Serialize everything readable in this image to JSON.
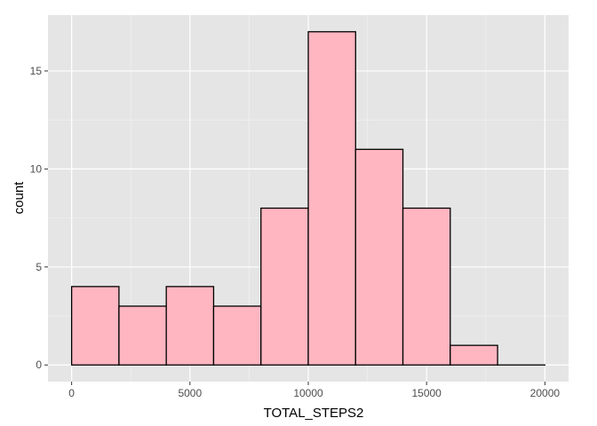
{
  "chart_data": {
    "type": "bar",
    "subtype": "histogram",
    "title": "",
    "xlabel": "TOTAL_STEPS2",
    "ylabel": "count",
    "bins": [
      {
        "start": 0,
        "end": 2000,
        "count": 4
      },
      {
        "start": 2000,
        "end": 4000,
        "count": 3
      },
      {
        "start": 4000,
        "end": 6000,
        "count": 4
      },
      {
        "start": 6000,
        "end": 8000,
        "count": 3
      },
      {
        "start": 8000,
        "end": 10000,
        "count": 8
      },
      {
        "start": 10000,
        "end": 12000,
        "count": 17
      },
      {
        "start": 12000,
        "end": 14000,
        "count": 11
      },
      {
        "start": 14000,
        "end": 16000,
        "count": 8
      },
      {
        "start": 16000,
        "end": 18000,
        "count": 1
      },
      {
        "start": 18000,
        "end": 20000,
        "count": 0
      }
    ],
    "xlim": [
      -1000,
      21000
    ],
    "ylim": [
      -0.85,
      17.85
    ],
    "x_ticks": [
      0,
      5000,
      10000,
      15000,
      20000
    ],
    "x_tick_labels": [
      "0",
      "5000",
      "10000",
      "15000",
      "20000"
    ],
    "y_ticks": [
      0,
      5,
      10,
      15
    ],
    "y_tick_labels": [
      "0",
      "5",
      "10",
      "15"
    ],
    "x_minor_ticks": [
      2500,
      7500,
      12500,
      17500
    ],
    "y_minor_ticks": [
      2.5,
      7.5,
      12.5
    ],
    "grid": true,
    "legend": "none",
    "colors": {
      "panel_background": "#e5e5e5",
      "grid_major": "#ffffff",
      "grid_minor": "#f2f2f2",
      "bar_fill": "#ffb6c1",
      "bar_outline": "#000000"
    }
  }
}
